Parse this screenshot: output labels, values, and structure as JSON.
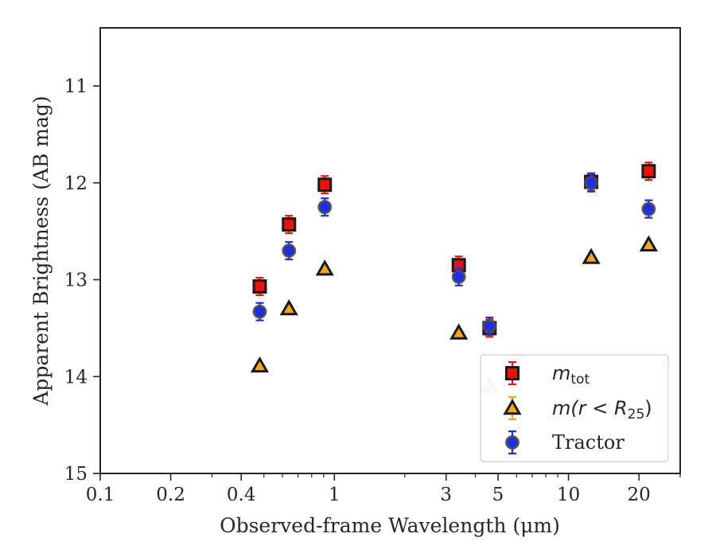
{
  "chart_data": {
    "type": "scatter",
    "title": "",
    "xlabel": "Observed-frame Wavelength (μm)",
    "ylabel": "Apparent Brightness (AB mag)",
    "xscale": "log",
    "xlim": [
      0.1,
      30
    ],
    "ylim": [
      15,
      10.4
    ],
    "y_inverted": true,
    "grid": false,
    "legend_position": "lower-right",
    "x_ticks": [
      {
        "value": 0.1,
        "label": "0.1"
      },
      {
        "value": 0.2,
        "label": "0.2"
      },
      {
        "value": 0.4,
        "label": "0.4"
      },
      {
        "value": 1,
        "label": "1"
      },
      {
        "value": 3,
        "label": "3"
      },
      {
        "value": 5,
        "label": "5"
      },
      {
        "value": 10,
        "label": "10"
      },
      {
        "value": 20,
        "label": "20"
      }
    ],
    "y_ticks": [
      {
        "value": 11,
        "label": "11"
      },
      {
        "value": 12,
        "label": "12"
      },
      {
        "value": 13,
        "label": "13"
      },
      {
        "value": 14,
        "label": "14"
      },
      {
        "value": 15,
        "label": "15"
      }
    ],
    "series": [
      {
        "name": "m_tot",
        "legend_main": "m",
        "legend_sub": "tot",
        "marker": "square",
        "color": "#e8140c",
        "edge": "#1a1a1a",
        "errcolor": "#e8140c",
        "points": [
          {
            "x": 0.48,
            "y": 13.07,
            "err": 0.09
          },
          {
            "x": 0.64,
            "y": 12.43,
            "err": 0.09
          },
          {
            "x": 0.91,
            "y": 12.02,
            "err": 0.09
          },
          {
            "x": 3.4,
            "y": 12.85,
            "err": 0.09
          },
          {
            "x": 4.6,
            "y": 13.5,
            "err": 0.09
          },
          {
            "x": 12.5,
            "y": 11.99,
            "err": 0.09
          },
          {
            "x": 22.0,
            "y": 11.88,
            "err": 0.09
          }
        ]
      },
      {
        "name": "m(r < R25)",
        "legend_main": "m(r < R",
        "legend_sub": "25",
        "legend_tail": ")",
        "marker": "triangle",
        "color": "#f5a623",
        "edge": "#1a1a1a",
        "errcolor": "#f5a623",
        "points": [
          {
            "x": 0.48,
            "y": 13.89,
            "err": 0.0
          },
          {
            "x": 0.64,
            "y": 13.3,
            "err": 0.0
          },
          {
            "x": 0.91,
            "y": 12.89,
            "err": 0.0
          },
          {
            "x": 3.4,
            "y": 13.55,
            "err": 0.0
          },
          {
            "x": 4.6,
            "y": 14.1,
            "err": 0.0,
            "faded": true
          },
          {
            "x": 12.5,
            "y": 12.77,
            "err": 0.0
          },
          {
            "x": 22.0,
            "y": 12.64,
            "err": 0.0
          }
        ]
      },
      {
        "name": "Tractor",
        "legend_main": "Tractor",
        "marker": "circle",
        "color": "#1c2fe6",
        "edge": "#4a4a4a",
        "errcolor": "#1c2fe6",
        "points": [
          {
            "x": 0.48,
            "y": 13.33,
            "err": 0.09
          },
          {
            "x": 0.64,
            "y": 12.7,
            "err": 0.09
          },
          {
            "x": 0.91,
            "y": 12.25,
            "err": 0.09
          },
          {
            "x": 3.4,
            "y": 12.97,
            "err": 0.09
          },
          {
            "x": 4.6,
            "y": 13.48,
            "err": 0.09
          },
          {
            "x": 12.5,
            "y": 12.0,
            "err": 0.09
          },
          {
            "x": 22.0,
            "y": 12.27,
            "err": 0.09
          }
        ]
      }
    ]
  }
}
